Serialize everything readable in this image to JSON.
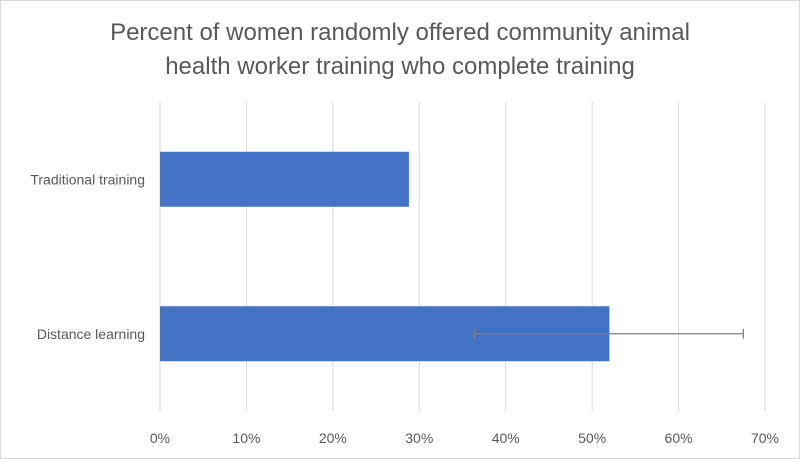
{
  "chart_data": {
    "type": "bar",
    "orientation": "horizontal",
    "title_lines": [
      "Percent of women randomly offered community animal",
      "health worker training who complete training"
    ],
    "categories": [
      "Traditional training",
      "Distance learning"
    ],
    "values": [
      28.8,
      52.0
    ],
    "error_bars": [
      null,
      {
        "low": 36.4,
        "high": 67.5
      }
    ],
    "xlim": [
      0,
      70
    ],
    "x_ticks": [
      0,
      10,
      20,
      30,
      40,
      50,
      60,
      70
    ],
    "x_tick_labels": [
      "0%",
      "10%",
      "20%",
      "30%",
      "40%",
      "50%",
      "60%",
      "70%"
    ],
    "xlabel": "",
    "ylabel": "",
    "grid": "vertical gridlines",
    "legend": "none",
    "colors": {
      "bar": "#4472c4",
      "grid": "#d9d9d9",
      "error_bar": "#7f7f7f",
      "text": "#595959"
    }
  }
}
